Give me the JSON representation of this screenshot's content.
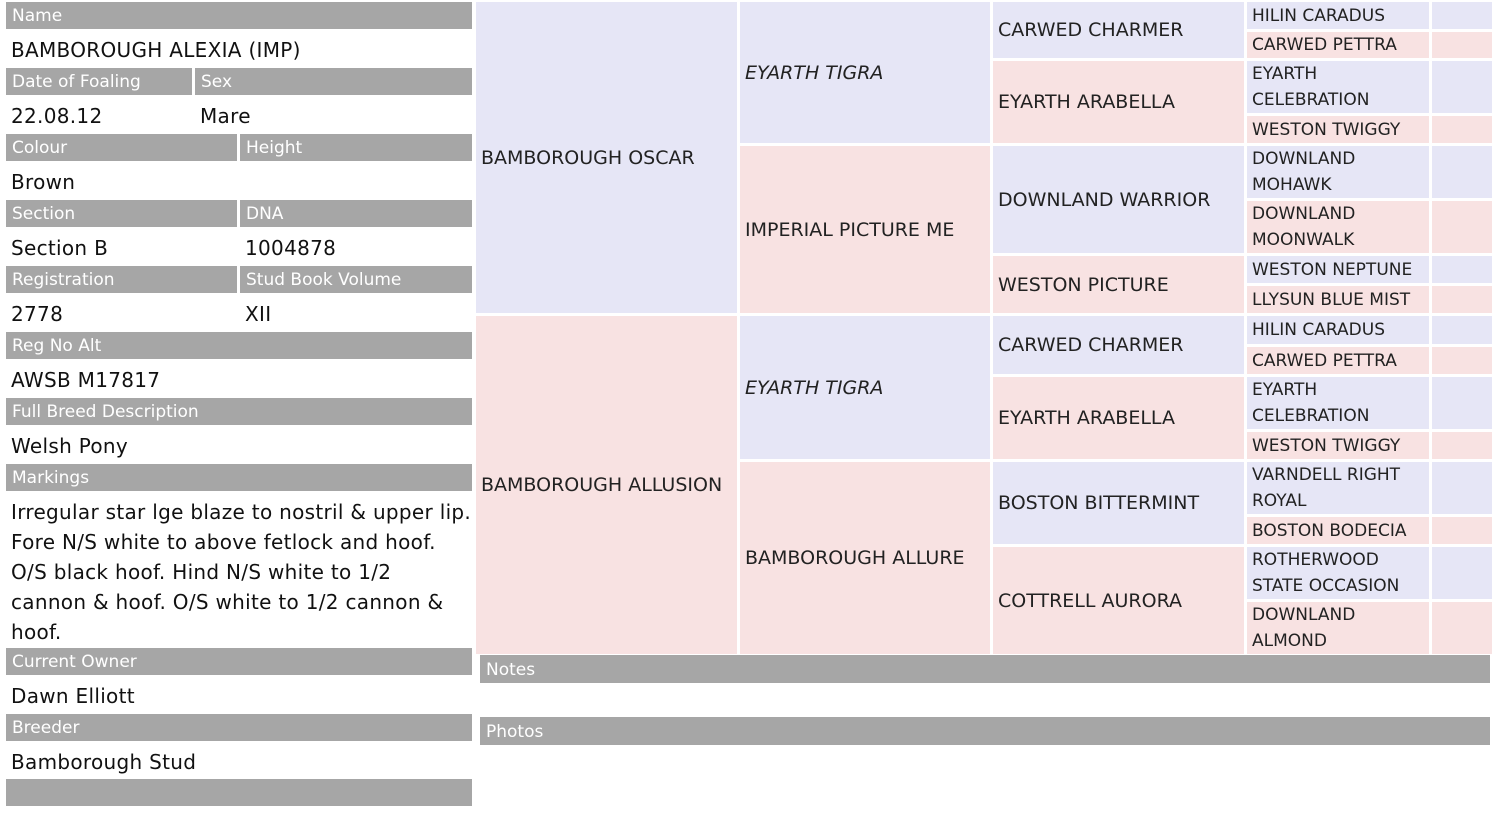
{
  "details": [
    [
      {
        "label": "Name",
        "value": "BAMBOROUGH ALEXIA (IMP)"
      }
    ],
    [
      {
        "label": "Date of Foaling",
        "value": "22.08.12"
      },
      {
        "label": "Sex",
        "value": "Mare"
      }
    ],
    [
      {
        "label": "Colour",
        "value": "Brown"
      },
      {
        "label": "Height"
      }
    ],
    [
      {
        "label": "Section",
        "value": "Section B"
      },
      {
        "label": "DNA",
        "value": "1004878"
      }
    ],
    [
      {
        "label": "Registration",
        "value": "2778"
      },
      {
        "label": "Stud Book Volume",
        "value": "XII"
      }
    ],
    [
      {
        "label": "Reg No Alt",
        "value": "AWSB M17817"
      }
    ],
    [
      {
        "label": "Full Breed Description",
        "value": "Welsh Pony"
      }
    ],
    [
      {
        "label": "Markings",
        "value": "Irregular star lge blaze to nostril & upper lip. Fore N/S white to above fetlock and hoof. O/S black hoof. Hind N/S white to 1/2 cannon & hoof. O/S white to 1/2 cannon & hoof."
      }
    ],
    [
      {
        "label": "Current Owner",
        "value": "Dawn Elliott"
      }
    ],
    [
      {
        "label": "Breeder",
        "value": "Bamborough Stud"
      }
    ]
  ],
  "pedigree": {
    "gen1": [
      "BAMBOROUGH OSCAR",
      "BAMBOROUGH ALLUSION"
    ],
    "gen2": [
      "EYARTH TIGRA",
      "IMPERIAL PICTURE ME",
      "EYARTH TIGRA",
      "BAMBOROUGH ALLURE"
    ],
    "gen3": [
      "CARWED CHARMER",
      "EYARTH ARABELLA",
      "DOWNLAND WARRIOR",
      "WESTON PICTURE",
      "CARWED CHARMER",
      "EYARTH ARABELLA",
      "BOSTON BITTERMINT",
      "COTTRELL AURORA"
    ],
    "gen4": [
      "HILIN CARADUS",
      "CARWED PETTRA",
      "EYARTH CELEBRATION",
      "WESTON TWIGGY",
      "DOWNLAND MOHAWK",
      "DOWNLAND MOONWALK",
      "WESTON NEPTUNE",
      "LLYSUN BLUE MIST",
      "HILIN CARADUS",
      "CARWED PETTRA",
      "EYARTH CELEBRATION",
      "WESTON TWIGGY",
      "VARNDELL RIGHT ROYAL",
      "BOSTON BODECIA",
      "ROTHERWOOD STATE OCCASION",
      "DOWNLAND ALMOND"
    ]
  },
  "sections": [
    "Notes",
    "Photos"
  ]
}
